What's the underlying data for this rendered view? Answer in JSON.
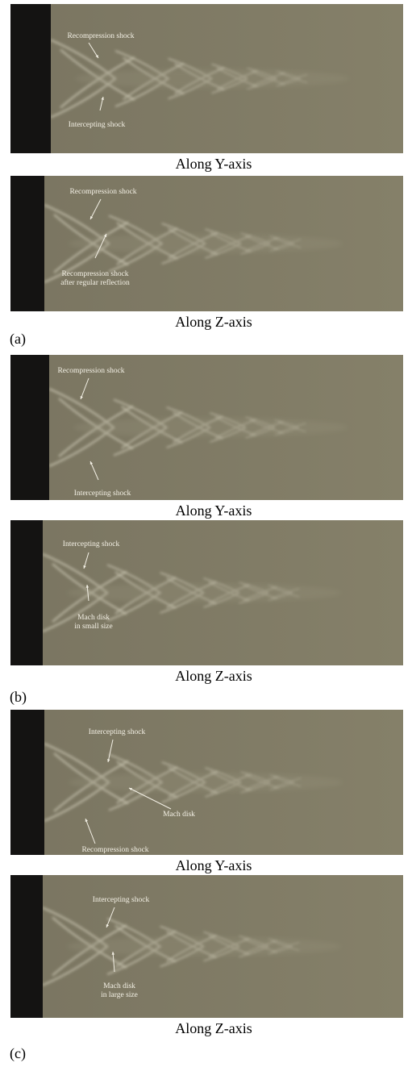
{
  "figure": {
    "groups": [
      {
        "label": "(a)",
        "views": [
          {
            "caption": "Along Y-axis",
            "annotations": [
              [
                "Recompression shock"
              ],
              [
                "Intercepting shock"
              ]
            ]
          },
          {
            "caption": "Along Z-axis",
            "annotations": [
              [
                "Recompression shock"
              ],
              [
                "Recompression shock",
                "after regular reflection"
              ]
            ]
          }
        ]
      },
      {
        "label": "(b)",
        "views": [
          {
            "caption": "Along Y-axis",
            "annotations": [
              [
                "Recompression shock"
              ],
              [
                "Intercepting shock"
              ]
            ]
          },
          {
            "caption": "Along Z-axis",
            "annotations": [
              [
                "Intercepting shock"
              ],
              [
                "Mach disk",
                "in small size"
              ]
            ]
          }
        ]
      },
      {
        "label": "(c)",
        "views": [
          {
            "caption": "Along Y-axis",
            "annotations": [
              [
                "Intercepting shock"
              ],
              [
                "Mach disk"
              ],
              [
                "Recompression shock"
              ]
            ]
          },
          {
            "caption": "Along Z-axis",
            "annotations": [
              [
                "Intercepting shock"
              ],
              [
                "Mach disk",
                "in large size"
              ]
            ]
          }
        ]
      }
    ]
  }
}
